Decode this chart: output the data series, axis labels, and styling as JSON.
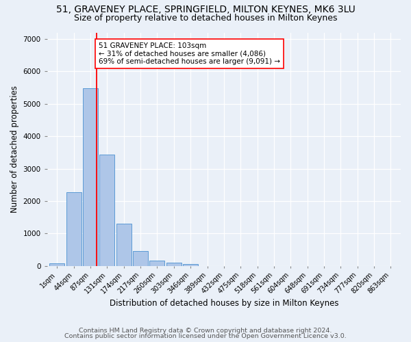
{
  "title_line1": "51, GRAVENEY PLACE, SPRINGFIELD, MILTON KEYNES, MK6 3LU",
  "title_line2": "Size of property relative to detached houses in Milton Keynes",
  "xlabel": "Distribution of detached houses by size in Milton Keynes",
  "ylabel": "Number of detached properties",
  "footnote_line1": "Contains HM Land Registry data © Crown copyright and database right 2024.",
  "footnote_line2": "Contains public sector information licensed under the Open Government Licence v3.0.",
  "bar_labels": [
    "1sqm",
    "44sqm",
    "87sqm",
    "131sqm",
    "174sqm",
    "217sqm",
    "260sqm",
    "303sqm",
    "346sqm",
    "389sqm",
    "432sqm",
    "475sqm",
    "518sqm",
    "561sqm",
    "604sqm",
    "648sqm",
    "691sqm",
    "734sqm",
    "777sqm",
    "820sqm",
    "863sqm"
  ],
  "bar_values": [
    75,
    2280,
    5480,
    3440,
    1310,
    470,
    155,
    95,
    60,
    0,
    0,
    0,
    0,
    0,
    0,
    0,
    0,
    0,
    0,
    0,
    0
  ],
  "bar_color": "#aec6e8",
  "bar_edge_color": "#5b9bd5",
  "vline_x": 2.35,
  "vline_color": "red",
  "annotation_text": "51 GRAVENEY PLACE: 103sqm\n← 31% of detached houses are smaller (4,086)\n69% of semi-detached houses are larger (9,091) →",
  "annotation_box_color": "white",
  "annotation_box_edge": "red",
  "ylim": [
    0,
    7200
  ],
  "yticks": [
    0,
    1000,
    2000,
    3000,
    4000,
    5000,
    6000,
    7000
  ],
  "bg_color": "#eaf0f8",
  "grid_color": "#ffffff",
  "title_fontsize": 10,
  "subtitle_fontsize": 9,
  "axis_label_fontsize": 8.5,
  "tick_fontsize": 7.5,
  "footnote_fontsize": 6.8,
  "annot_fontsize": 7.5
}
